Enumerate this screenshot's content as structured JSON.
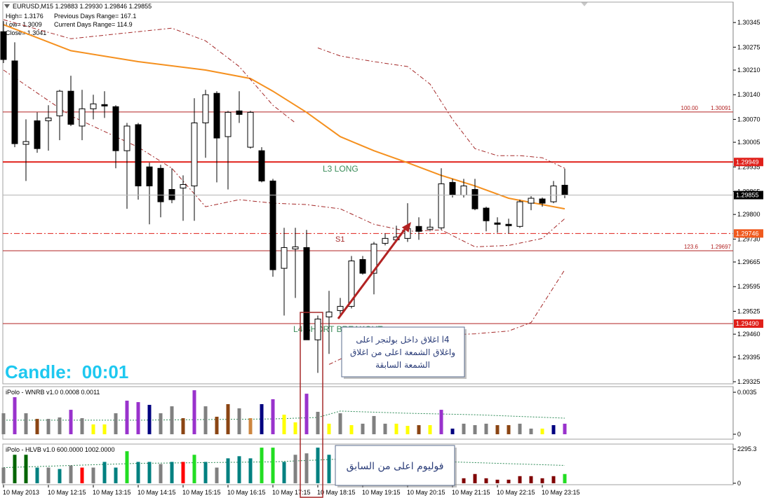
{
  "chart_data": [
    {
      "type": "candlestick",
      "title": "EURUSD,M15 1.29883 1.29930 1.29846 1.29855",
      "info": [
        [
          "High= 1.3176",
          "Previous Days Range= 167.1"
        ],
        [
          "Low= 1.3009",
          "Current Days Range= 114.9"
        ],
        [
          "Close= 1.3041"
        ]
      ],
      "timer": "Candle:  00:01",
      "annotations": [
        "L3 LONG",
        "S1",
        "L4 SHORT BREAKOUT"
      ],
      "categories": [
        "10 May 2013",
        null,
        null,
        null,
        "10 May 12:15",
        null,
        null,
        null,
        "10 May 13:15",
        null,
        null,
        null,
        "10 May 14:15",
        null,
        null,
        null,
        "10 May 15:15",
        null,
        null,
        null,
        "10 May 16:15",
        null,
        null,
        null,
        "10 May 17:15",
        null,
        null,
        null,
        "10 May 18:15",
        null,
        null,
        null,
        "10 May 19:15",
        null,
        null,
        null,
        "10 May 20:15",
        null,
        null,
        null,
        "10 May 21:15",
        null,
        null,
        null,
        "10 May 22:15",
        null,
        null,
        null,
        "10 May 23:15",
        null,
        null
      ],
      "open": [
        1.30319,
        1.30236,
        1.29999,
        1.30066,
        1.30066,
        1.3008,
        1.3015,
        1.30051,
        1.301,
        1.30112,
        1.30106,
        1.29981,
        1.30055,
        1.29935,
        1.29931,
        1.29871,
        1.29875,
        1.29881,
        1.3006,
        1.30144,
        1.30021,
        1.30094,
        1.29991,
        1.29981,
        1.29895,
        1.29647,
        1.29702,
        1.29706,
        1.29444,
        1.29509,
        1.29527,
        1.29539,
        1.29672,
        1.29633,
        1.29718,
        1.29728,
        1.29732,
        1.29766,
        1.29758,
        1.29762,
        1.29891,
        1.29855,
        1.29871,
        1.29818,
        1.29776,
        1.29772,
        1.29766,
        1.29832,
        1.29844,
        1.29836,
        1.29883
      ],
      "high": [
        1.30349,
        1.30289,
        1.3007,
        1.3009,
        1.3011,
        1.30154,
        1.30194,
        1.30154,
        1.3014,
        1.3015,
        1.3011,
        1.3006,
        1.3006,
        1.29947,
        1.29941,
        1.29931,
        1.29911,
        1.3013,
        1.30154,
        1.3015,
        1.30094,
        1.3015,
        1.30094,
        1.29991,
        1.29901,
        1.29762,
        1.29762,
        1.29756,
        1.29513,
        1.29583,
        1.29563,
        1.29682,
        1.29682,
        1.29722,
        1.29746,
        1.29768,
        1.29832,
        1.29792,
        1.29788,
        1.29931,
        1.29901,
        1.29901,
        1.29901,
        1.29822,
        1.29792,
        1.29788,
        1.29842,
        1.29852,
        1.29848,
        1.29895,
        1.2993
      ],
      "low": [
        1.3023,
        1.29991,
        1.29895,
        1.29975,
        1.29981,
        1.30011,
        1.30051,
        1.30011,
        1.3007,
        1.30074,
        1.29931,
        1.29816,
        1.29842,
        1.29772,
        1.29792,
        1.29832,
        1.29782,
        1.29782,
        1.29961,
        1.29891,
        1.29871,
        1.3006,
        1.29987,
        1.29891,
        1.29623,
        1.29513,
        1.29563,
        1.29444,
        1.2935,
        1.29404,
        1.29509,
        1.29533,
        1.29629,
        1.29573,
        1.29712,
        1.29722,
        1.29722,
        1.29728,
        1.29752,
        1.29756,
        1.29848,
        1.29848,
        1.29812,
        1.29752,
        1.29748,
        1.29746,
        1.29762,
        1.29812,
        1.29822,
        1.29832,
        1.29846
      ],
      "close": [
        1.3024,
        1.30001,
        1.30007,
        1.29987,
        1.30074,
        1.3015,
        1.30056,
        1.301,
        1.30114,
        1.30108,
        1.29981,
        1.30051,
        1.29881,
        1.29881,
        1.29836,
        1.29842,
        1.29885,
        1.3006,
        1.3014,
        1.30017,
        1.3009,
        1.30084,
        1.3009,
        1.29895,
        1.29643,
        1.29706,
        1.29708,
        1.29444,
        1.29503,
        1.29523,
        1.29539,
        1.29668,
        1.29633,
        1.29716,
        1.29732,
        1.29736,
        1.2976,
        1.29752,
        1.29764,
        1.29887,
        1.29855,
        1.29881,
        1.29816,
        1.29782,
        1.29772,
        1.29768,
        1.29836,
        1.29846,
        1.29832,
        1.29881,
        1.29855
      ],
      "up_color": "#ffffff",
      "down_color": "#000000",
      "ylim": [
        1.29319,
        1.30403
      ],
      "yticks": [
        1.30345,
        1.30275,
        {
          "value": 1.3021,
          "label": "1.30210"
        },
        {
          "value": 1.3014,
          "label": "1.30140"
        },
        {
          "value": 1.3007,
          "label": "1.30070"
        },
        1.30005,
        1.29935,
        1.29865,
        {
          "value": 1.298,
          "label": "1.29800"
        },
        {
          "value": 1.2973,
          "label": "1.29730"
        },
        1.29665,
        1.29595,
        1.29525,
        {
          "value": 1.2946,
          "label": "1.29460"
        },
        1.29395,
        1.29325
      ],
      "levels": [
        {
          "value": 1.30091,
          "fib": "100.00",
          "color": "#b22222",
          "width": 1,
          "dash": "none"
        },
        {
          "value": 1.29949,
          "color": "#e0201a",
          "width": 2,
          "dash": "none",
          "tag_color": "#e0201a"
        },
        {
          "value": 1.29746,
          "color": "#e0201a",
          "width": 1,
          "dash": "8 3 2 3",
          "tag_color": "#f05a1e"
        },
        {
          "value": 1.29697,
          "fib": "123.6",
          "color": "#b22222",
          "width": 1,
          "dash": "none"
        },
        {
          "value": 1.2949,
          "value_label": "1.29490",
          "color": "#b22222",
          "width": 1,
          "dash": "none",
          "tag_color": "#e0201a"
        }
      ],
      "overlays": [
        {
          "color": "#f5901e",
          "width": 2,
          "dash": "none",
          "x": [
            0,
            6,
            12,
            18,
            22,
            24,
            27,
            30,
            33,
            36,
            39,
            42,
            45,
            48,
            50
          ],
          "values": [
            1.30339,
            1.30265,
            1.30234,
            1.3021,
            1.30186,
            1.3015,
            1.3009,
            1.30021,
            1.29981,
            1.29947,
            1.29911,
            1.29881,
            1.29846,
            1.29828,
            1.29816
          ]
        },
        {
          "color": "#a52a2a",
          "width": 1,
          "dash": "6 3 2 3",
          "x": [
            0,
            6,
            12,
            15,
            18,
            21,
            24,
            26,
            27,
            28,
            30,
            33,
            36,
            38,
            40,
            42,
            44,
            46,
            48,
            50
          ],
          "values": [
            1.30353,
            1.30299,
            1.30319,
            1.30329,
            1.30293,
            1.3022,
            1.3011,
            1.3006,
            null,
            1.30273,
            1.3025,
            1.30234,
            1.3022,
            1.3017,
            1.3007,
            1.29987,
            1.29967,
            1.29967,
            1.29961,
            1.29931
          ]
        },
        {
          "color": "#a52a2a",
          "width": 1,
          "dash": "6 3 2 3",
          "x": [
            0,
            6,
            12,
            15,
            18,
            21,
            24,
            27,
            30,
            33,
            36,
            39,
            42,
            45,
            48,
            50
          ],
          "values": [
            1.3021,
            1.3008,
            1.29991,
            1.29931,
            1.29822,
            1.29842,
            1.29832,
            1.29828,
            1.29816,
            1.29772,
            1.29752,
            1.29756,
            1.29708,
            1.29712,
            1.29732,
            1.29788
          ]
        },
        {
          "color": "#a52a2a",
          "width": 1,
          "dash": "6 3 2 3",
          "x": [
            29,
            31,
            33,
            36,
            39,
            42,
            45,
            47,
            49,
            50
          ],
          "values": [
            1.29374,
            1.29404,
            1.29424,
            1.29444,
            1.29457,
            1.29461,
            1.29469,
            1.29493,
            1.29593,
            1.29643
          ]
        }
      ]
    },
    {
      "type": "bar",
      "title": "iPolo - WNRB v1.0 0.0008 0.0011",
      "values": [
        0.00175,
        0.00309,
        0.00175,
        0.00128,
        0.00128,
        0.0014,
        0.00204,
        0.00134,
        0.00082,
        0.00082,
        0.00175,
        0.0028,
        0.00268,
        0.00245,
        0.00175,
        0.00233,
        0.00134,
        0.00367,
        0.00233,
        0.00146,
        0.00251,
        0.00216,
        0.00134,
        0.00251,
        0.00292,
        0.00163,
        0.00099,
        0.00338,
        0.00187,
        0.00088,
        0.00175,
        0.00076,
        0.00088,
        0.00152,
        0.00088,
        0.00088,
        0.0007,
        0.00076,
        0.00076,
        0.00204,
        0.00047,
        0.00088,
        0.00076,
        0.00088,
        0.00076,
        0.00076,
        0.00088,
        0.00047,
        0.00047,
        0.00076,
        0.00088
      ],
      "colors": [
        "#808080",
        "#9932cc",
        "#808080",
        "#8b4513",
        "#808080",
        "#808080",
        "#9932cc",
        "#808080",
        "#ffff00",
        "#ffff00",
        "#808080",
        "#9932cc",
        "#9932cc",
        "#000080",
        "#808080",
        "#808080",
        "#8b4513",
        "#9932cc",
        "#808080",
        "#8b4513",
        "#8b4513",
        "#808080",
        "#cd853f",
        "#000080",
        "#9932cc",
        "#ffff00",
        "#ffff00",
        "#9932cc",
        "#808080",
        "#ffff00",
        "#808080",
        "#ffff00",
        "#808080",
        "#808080",
        "#808080",
        "#ffff00",
        "#ffff00",
        "#8b4513",
        "#ffff00",
        "#9932cc",
        "#000080",
        "#808080",
        "#808080",
        "#808080",
        "#8b4513",
        "#8b4513",
        "#808080",
        "#808080",
        "#ffff00",
        "#000080",
        "#9932cc"
      ],
      "ylim": [
        -0.00041,
        0.00397
      ],
      "yticks": [
        0.0035,
        0
      ],
      "overlays": [
        {
          "color": "#2e8b57",
          "width": 1,
          "dash": "2 2",
          "x": [
            0,
            12,
            24,
            28,
            30,
            36,
            42,
            50
          ],
          "values": [
            0.00117,
            0.00117,
            0.00128,
            0.0014,
            0.00193,
            0.00175,
            0.00163,
            0.00134
          ]
        }
      ]
    },
    {
      "type": "bar",
      "title": "iPolo - HLVB v1.0 600.0000 1002.0000",
      "values": [
        1052,
        1912,
        1912,
        1052,
        1052,
        956,
        1195,
        1052,
        1052,
        1434,
        1052,
        2151,
        1434,
        1434,
        1291,
        1434,
        1434,
        1912,
        1434,
        1052,
        1673,
        1816,
        1673,
        2390,
        2390,
        1434,
        1912,
        2008,
        2390,
        1912,
        717,
        478,
        478,
        478,
        478,
        478,
        478,
        478,
        478,
        478,
        335,
        335,
        621,
        335,
        239,
        239,
        478,
        478,
        335,
        478,
        621
      ],
      "colors": [
        "#808080",
        "#006400",
        "#006400",
        "#008080",
        "#808080",
        "#008080",
        "#808080",
        "#ff0000",
        "#808080",
        "#008080",
        "#008080",
        "#22dd22",
        "#008080",
        "#008080",
        "#808080",
        "#008080",
        "#ff0000",
        "#22dd22",
        "#008080",
        "#808080",
        "#008080",
        "#008080",
        "#008080",
        "#22dd22",
        "#22dd22",
        "#008080",
        "#808080",
        "#808080",
        "#008080",
        "#008080",
        "#808080",
        "#808080",
        "#808080",
        "#808080",
        "#808080",
        "#808080",
        "#808080",
        "#808080",
        "#808080",
        "#808080",
        "#800000",
        "#800000",
        "#800000",
        "#800000",
        "#800000",
        "#800000",
        "#800000",
        "#800000",
        "#800000",
        "#800000",
        "#22dd22"
      ],
      "ylim": [
        -96,
        2630
      ],
      "yticks": [
        2295.3,
        0
      ],
      "overlays": [
        {
          "color": "#2e8b57",
          "width": 1,
          "dash": "2 2",
          "x": [
            0,
            12,
            24,
            30,
            36,
            44,
            50
          ],
          "values": [
            1052,
            1338,
            1434,
            1625,
            1530,
            1338,
            1195
          ]
        }
      ]
    }
  ],
  "notes": [
    [
      "l4 اغلاق داخل بولنجر اعلى",
      "واغلاق الشمعة اعلى من اغلاق",
      "الشمعة السابقة"
    ],
    [
      "فوليوم اعلى من السابق"
    ]
  ]
}
